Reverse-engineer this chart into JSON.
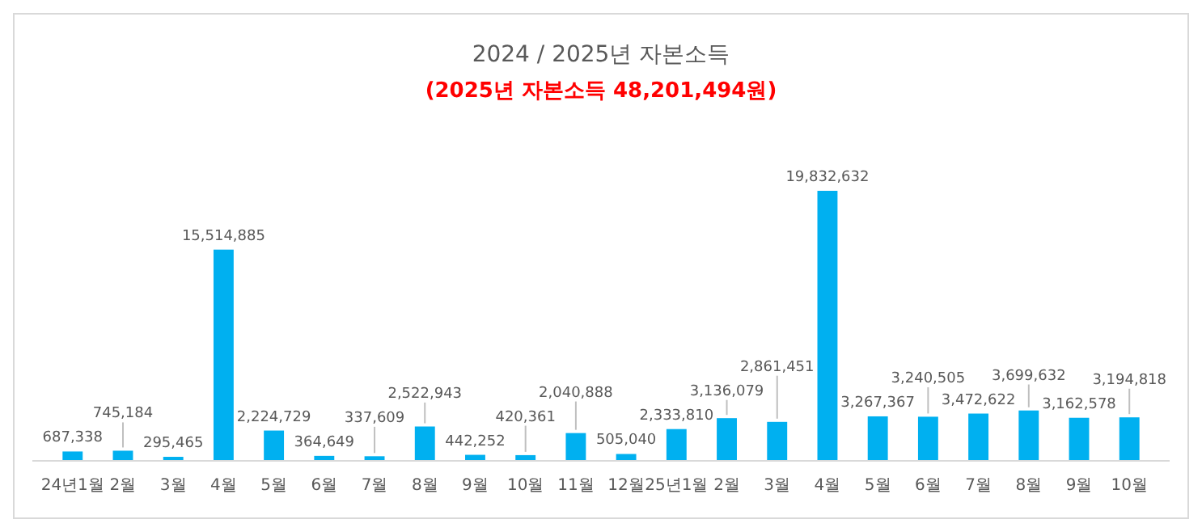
{
  "chart_data": {
    "type": "bar",
    "title": "2024 / 2025년 자본소득",
    "subtitle": "(2025년 자본소득 48,201,494원)",
    "categories": [
      "24년1월",
      "2월",
      "3월",
      "4월",
      "5월",
      "6월",
      "7월",
      "8월",
      "9월",
      "10월",
      "11월",
      "12월",
      "25년1월",
      "2월",
      "3월",
      "4월",
      "5월",
      "6월",
      "7월",
      "8월",
      "9월",
      "10월"
    ],
    "values": [
      687338,
      745184,
      295465,
      15514885,
      2224729,
      364649,
      337609,
      2522943,
      442252,
      420361,
      2040888,
      505040,
      2333810,
      3136079,
      2861451,
      19832632,
      3267367,
      3240505,
      3472622,
      3699632,
      3162578,
      3194818
    ],
    "value_labels": [
      "687,338",
      "745,184",
      "295,465",
      "15,514,885",
      "2,224,729",
      "364,649",
      "337,609",
      "2,522,943",
      "442,252",
      "420,361",
      "2,040,888",
      "505,040",
      "2,333,810",
      "3,136,079",
      "2,861,451",
      "19,832,632",
      "3,267,367",
      "3,240,505",
      "3,472,622",
      "3,699,632",
      "3,162,578",
      "3,194,818"
    ],
    "color": "#00b0f0"
  }
}
